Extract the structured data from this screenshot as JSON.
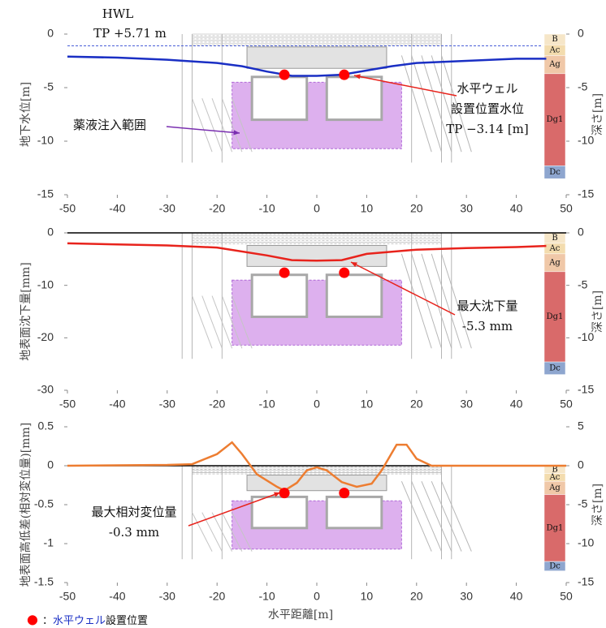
{
  "chart_data": [
    {
      "type": "line",
      "y_label": "地下水位[m]",
      "y2_label": "深さ[m]",
      "xlim": [
        -50,
        50
      ],
      "xticks": [
        -50,
        -40,
        -30,
        -20,
        -10,
        0,
        10,
        20,
        30,
        40,
        50
      ],
      "ylim": [
        -15,
        0
      ],
      "yticks": [
        0,
        -5,
        -10,
        -15
      ],
      "y2lim": [
        -15,
        0
      ],
      "y2ticks": [
        0,
        -5,
        -10,
        -15
      ],
      "hwl_title": "HWL",
      "hwl_label": "TP +5.71 m",
      "hwl_level": -1.1,
      "x": [
        -50,
        -40,
        -30,
        -20,
        -15,
        -10,
        -5,
        0,
        5,
        10,
        15,
        20,
        30,
        40,
        46
      ],
      "series": [
        {
          "color": "#1a2fc4",
          "values": [
            -2.1,
            -2.2,
            -2.4,
            -2.7,
            -3.0,
            -3.5,
            -3.9,
            -3.9,
            -3.8,
            -3.4,
            -3.0,
            -2.7,
            -2.5,
            -2.3,
            -2.3
          ]
        }
      ],
      "wells": {
        "type": "scatter",
        "color": "#ff0000",
        "x": [
          -6.5,
          5.5
        ],
        "values": [
          -3.8,
          -3.8
        ]
      },
      "annotations": [
        {
          "lines": [
            "水平ウェル",
            "設置位置水位",
            "TP −3.14 [m]"
          ]
        },
        {
          "lines": [
            "薬液注入範囲"
          ]
        }
      ]
    },
    {
      "type": "line",
      "y_label": "地表面沈下量[mm]",
      "y2_label": "深さ[m]",
      "xlim": [
        -50,
        50
      ],
      "xticks": [
        -50,
        -40,
        -30,
        -20,
        -10,
        0,
        10,
        20,
        30,
        40,
        50
      ],
      "ylim": [
        -30,
        0
      ],
      "yticks": [
        0,
        -10,
        -20,
        -30
      ],
      "y2lim": [
        -15,
        0
      ],
      "y2ticks": [
        0,
        -5,
        -10,
        -15
      ],
      "zero_line": true,
      "x": [
        -50,
        -40,
        -30,
        -20,
        -10,
        -5,
        0,
        5,
        10,
        20,
        30,
        40,
        46
      ],
      "series": [
        {
          "color": "#e8231c",
          "values": [
            -2.0,
            -2.2,
            -2.4,
            -2.8,
            -4.3,
            -5.2,
            -5.3,
            -5.2,
            -4.0,
            -3.2,
            -2.9,
            -2.7,
            -2.5
          ]
        }
      ],
      "wells": {
        "type": "scatter",
        "color": "#ff0000",
        "x": [
          -6.5,
          5.5
        ],
        "values": [
          -7.6,
          -7.6
        ]
      },
      "annotations": [
        {
          "lines": [
            "最大沈下量",
            "-5.3 mm"
          ]
        }
      ]
    },
    {
      "type": "line",
      "y_label": "地表面高低差(相対変位量)[mm]",
      "y2_label": "深さ[m]",
      "x_label": "水平距離[m]",
      "xlim": [
        -50,
        50
      ],
      "xticks": [
        -50,
        -40,
        -30,
        -20,
        -10,
        0,
        10,
        20,
        30,
        40,
        50
      ],
      "ylim": [
        -1.5,
        0.5
      ],
      "yticks": [
        0.5,
        0,
        -0.5,
        -1,
        -1.5
      ],
      "y2lim": [
        -15,
        5
      ],
      "y2ticks": [
        5,
        0,
        -5,
        -10,
        -15
      ],
      "zero_line": true,
      "x": [
        -50,
        -30,
        -25,
        -20,
        -17,
        -15,
        -12,
        -8,
        -6.5,
        -4,
        -2,
        0,
        2,
        5,
        8,
        11,
        13,
        16,
        18,
        20,
        23,
        50
      ],
      "series": [
        {
          "color": "#ed7d31",
          "values": [
            0,
            0.01,
            0.02,
            0.15,
            0.3,
            0.15,
            -0.11,
            -0.27,
            -0.32,
            -0.22,
            -0.06,
            -0.02,
            -0.06,
            -0.21,
            -0.27,
            -0.23,
            -0.06,
            0.27,
            0.27,
            0.09,
            0,
            0
          ]
        }
      ],
      "wells": {
        "type": "scatter",
        "color": "#ff0000",
        "x": [
          -6.5,
          5.5
        ],
        "values": [
          -0.35,
          -0.35
        ]
      },
      "annotations": [
        {
          "lines": [
            "最大相対変位量",
            "-0.3 mm"
          ]
        }
      ]
    }
  ],
  "soil_layers": [
    {
      "name": "B",
      "color": "#f6e6c8",
      "top": 0,
      "bottom": -1
    },
    {
      "name": "Ac",
      "color": "#f3dcae",
      "top": -1,
      "bottom": -2
    },
    {
      "name": "Ag",
      "color": "#f0c8a8",
      "top": -2,
      "bottom": -3.7
    },
    {
      "name": "Dg1",
      "color": "#d96a6a",
      "top": -3.7,
      "bottom": -12.3
    },
    {
      "name": "Dc",
      "color": "#8ea6cf",
      "top": -12.3,
      "bottom": -13.5
    }
  ],
  "legend": {
    "marker": "●",
    "colon": "：",
    "label": "水平ウェル",
    "suffix": "設置位置"
  }
}
